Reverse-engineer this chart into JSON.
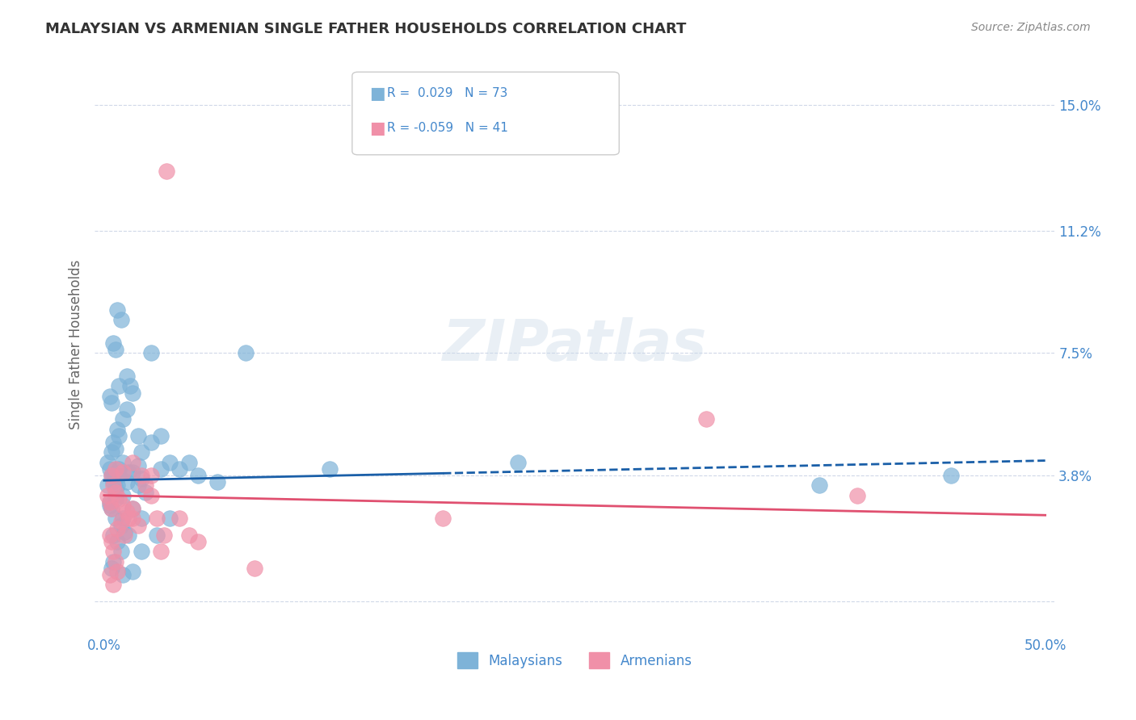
{
  "title": "MALAYSIAN VS ARMENIAN SINGLE FATHER HOUSEHOLDS CORRELATION CHART",
  "source": "Source: ZipAtlas.com",
  "ylabel": "Single Father Households",
  "xlim": [
    0.0,
    50.0
  ],
  "ylim": [
    -1.0,
    16.5
  ],
  "yticks": [
    0.0,
    3.8,
    7.5,
    11.2,
    15.0
  ],
  "ytick_labels": [
    "",
    "3.8%",
    "7.5%",
    "11.2%",
    "15.0%"
  ],
  "xticks": [
    0.0,
    10.0,
    20.0,
    30.0,
    40.0,
    50.0
  ],
  "xtick_labels": [
    "0.0%",
    "",
    "",
    "",
    "",
    "50.0%"
  ],
  "legend_entries": [
    {
      "label_r": "R =  0.029",
      "label_n": "N = 73",
      "color": "#a8c4e0"
    },
    {
      "label_r": "R = -0.059",
      "label_n": "N = 41",
      "color": "#f4a8c0"
    }
  ],
  "watermark": "ZIPatlas",
  "malaysian_color": "#7eb3d8",
  "armenian_color": "#f090a8",
  "trendline_malaysian_color": "#1a5fa8",
  "trendline_armenian_color": "#e05070",
  "mal_trend_start": 3.65,
  "mal_trend_end": 4.25,
  "arm_trend_start": 3.2,
  "arm_trend_end": 2.6,
  "malaysian_scatter": [
    [
      0.5,
      3.8
    ],
    [
      0.7,
      3.5
    ],
    [
      0.8,
      4.0
    ],
    [
      1.0,
      3.2
    ],
    [
      1.2,
      3.6
    ],
    [
      1.5,
      3.9
    ],
    [
      1.8,
      4.1
    ],
    [
      2.0,
      3.7
    ],
    [
      0.3,
      3.0
    ],
    [
      0.4,
      2.8
    ],
    [
      0.6,
      2.5
    ],
    [
      0.9,
      2.3
    ],
    [
      1.1,
      2.1
    ],
    [
      1.3,
      2.0
    ],
    [
      0.2,
      3.5
    ],
    [
      0.4,
      4.5
    ],
    [
      0.5,
      4.8
    ],
    [
      0.6,
      4.6
    ],
    [
      0.7,
      5.2
    ],
    [
      0.8,
      5.0
    ],
    [
      1.0,
      5.5
    ],
    [
      1.2,
      5.8
    ],
    [
      0.3,
      6.2
    ],
    [
      0.4,
      6.0
    ],
    [
      0.5,
      7.8
    ],
    [
      0.6,
      7.6
    ],
    [
      0.7,
      8.8
    ],
    [
      0.9,
      8.5
    ],
    [
      1.2,
      6.8
    ],
    [
      1.4,
      6.5
    ],
    [
      1.5,
      6.3
    ],
    [
      2.5,
      7.5
    ],
    [
      3.0,
      5.0
    ],
    [
      0.2,
      4.2
    ],
    [
      0.3,
      4.0
    ],
    [
      0.4,
      3.8
    ],
    [
      0.5,
      3.6
    ],
    [
      0.6,
      3.4
    ],
    [
      1.8,
      3.5
    ],
    [
      2.2,
      3.3
    ],
    [
      3.5,
      4.2
    ],
    [
      4.0,
      4.0
    ],
    [
      5.0,
      3.8
    ],
    [
      6.0,
      3.6
    ],
    [
      0.8,
      3.8
    ],
    [
      1.0,
      4.2
    ],
    [
      1.3,
      3.9
    ],
    [
      2.0,
      4.5
    ],
    [
      2.5,
      4.8
    ],
    [
      3.0,
      4.0
    ],
    [
      4.5,
      4.2
    ],
    [
      0.5,
      2.0
    ],
    [
      0.7,
      1.8
    ],
    [
      0.9,
      1.5
    ],
    [
      1.0,
      2.5
    ],
    [
      1.5,
      2.8
    ],
    [
      2.0,
      2.5
    ],
    [
      2.8,
      2.0
    ],
    [
      0.3,
      2.9
    ],
    [
      0.6,
      3.1
    ],
    [
      0.4,
      1.0
    ],
    [
      0.5,
      1.2
    ],
    [
      1.0,
      0.8
    ],
    [
      1.5,
      0.9
    ],
    [
      2.0,
      1.5
    ],
    [
      3.5,
      2.5
    ],
    [
      7.5,
      7.5
    ],
    [
      12.0,
      4.0
    ],
    [
      22.0,
      4.2
    ],
    [
      38.0,
      3.5
    ],
    [
      45.0,
      3.8
    ],
    [
      1.8,
      5.0
    ],
    [
      0.8,
      6.5
    ]
  ],
  "armenian_scatter": [
    [
      0.2,
      3.2
    ],
    [
      0.3,
      3.0
    ],
    [
      0.4,
      2.8
    ],
    [
      0.5,
      3.5
    ],
    [
      0.6,
      3.3
    ],
    [
      0.8,
      3.1
    ],
    [
      1.0,
      2.9
    ],
    [
      1.2,
      2.7
    ],
    [
      1.5,
      2.5
    ],
    [
      1.8,
      2.3
    ],
    [
      2.0,
      3.8
    ],
    [
      2.2,
      3.5
    ],
    [
      2.5,
      3.2
    ],
    [
      0.3,
      2.0
    ],
    [
      0.4,
      1.8
    ],
    [
      0.5,
      1.5
    ],
    [
      0.6,
      1.2
    ],
    [
      0.7,
      2.2
    ],
    [
      0.9,
      2.4
    ],
    [
      1.1,
      2.0
    ],
    [
      1.3,
      2.5
    ],
    [
      1.5,
      2.8
    ],
    [
      2.8,
      2.5
    ],
    [
      3.2,
      2.0
    ],
    [
      4.0,
      2.5
    ],
    [
      5.0,
      1.8
    ],
    [
      0.4,
      3.8
    ],
    [
      0.6,
      4.0
    ],
    [
      1.0,
      3.9
    ],
    [
      1.5,
      4.2
    ],
    [
      2.5,
      3.8
    ],
    [
      0.3,
      0.8
    ],
    [
      0.5,
      0.5
    ],
    [
      0.7,
      0.9
    ],
    [
      3.0,
      1.5
    ],
    [
      4.5,
      2.0
    ],
    [
      8.0,
      1.0
    ],
    [
      32.0,
      5.5
    ],
    [
      40.0,
      3.2
    ],
    [
      3.3,
      13.0
    ],
    [
      18.0,
      2.5
    ]
  ],
  "background_color": "#ffffff",
  "grid_color": "#d0d8e8",
  "tick_color": "#4488cc",
  "title_color": "#333333",
  "source_color": "#888888"
}
